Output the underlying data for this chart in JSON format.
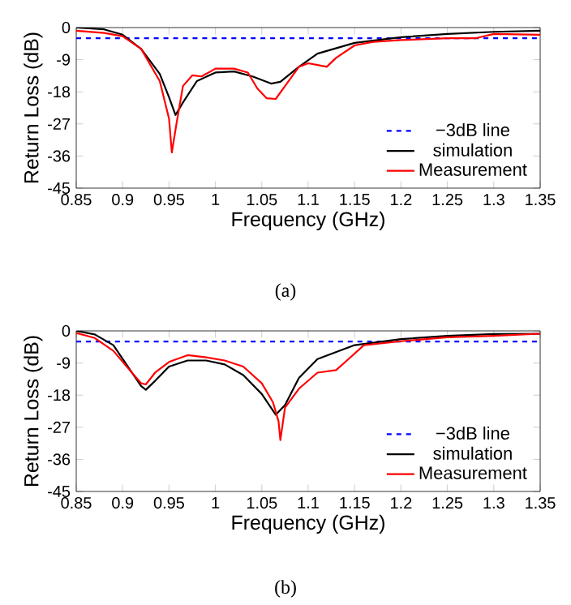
{
  "chart_data": [
    {
      "type": "line",
      "xlabel": "Frequency (GHz)",
      "ylabel": "Return Loss (dB)",
      "annotations": [
        "(a)"
      ],
      "xlim": [
        0.85,
        1.35
      ],
      "ylim": [
        -45,
        0
      ],
      "xticks": [
        0.85,
        0.9,
        0.95,
        1,
        1.05,
        1.1,
        1.15,
        1.2,
        1.25,
        1.3,
        1.35
      ],
      "yticks": [
        -45,
        -36,
        -27,
        -18,
        -9,
        0
      ],
      "legend": "bottom right",
      "grid": false,
      "marker": "none",
      "series": [
        {
          "name": "−3dB line",
          "color": "#0000ff",
          "line_style": "dashed",
          "x": [
            0.85,
            1.35
          ],
          "values": [
            -3,
            -3
          ]
        },
        {
          "name": "simulation",
          "color": "#000000",
          "line_style": "solid",
          "x": [
            0.85,
            0.88,
            0.9,
            0.92,
            0.94,
            0.95,
            0.957,
            0.965,
            0.98,
            1.0,
            1.02,
            1.04,
            1.06,
            1.07,
            1.09,
            1.11,
            1.15,
            1.2,
            1.25,
            1.3,
            1.35
          ],
          "values": [
            0,
            -0.5,
            -2,
            -6,
            -13,
            -19.5,
            -24.5,
            -21,
            -15,
            -12.6,
            -12.3,
            -13.7,
            -15.7,
            -15.2,
            -11,
            -7.3,
            -4.3,
            -2.7,
            -1.8,
            -1.2,
            -0.9
          ]
        },
        {
          "name": "Measurement",
          "color": "#ff0000",
          "line_style": "solid",
          "x": [
            0.85,
            0.88,
            0.9,
            0.92,
            0.94,
            0.95,
            0.953,
            0.958,
            0.965,
            0.975,
            0.985,
            1.0,
            1.02,
            1.035,
            1.045,
            1.055,
            1.065,
            1.075,
            1.09,
            1.1,
            1.11,
            1.12,
            1.13,
            1.15,
            1.17,
            1.2,
            1.25,
            1.28,
            1.3,
            1.35
          ],
          "values": [
            -0.9,
            -1.5,
            -2.4,
            -6,
            -15,
            -25.5,
            -35,
            -27,
            -16.4,
            -13.4,
            -13.7,
            -11.5,
            -11.5,
            -12.6,
            -17,
            -19.8,
            -20,
            -16.4,
            -11,
            -10,
            -10.5,
            -11,
            -8.5,
            -5,
            -4,
            -3.5,
            -3,
            -3,
            -1.8,
            -2
          ]
        }
      ]
    },
    {
      "type": "line",
      "xlabel": "Frequency (GHz)",
      "ylabel": "Return Loss (dB)",
      "annotations": [
        "(b)"
      ],
      "xlim": [
        0.85,
        1.35
      ],
      "ylim": [
        -45,
        0
      ],
      "xticks": [
        0.85,
        0.9,
        0.95,
        1,
        1.05,
        1.1,
        1.15,
        1.2,
        1.25,
        1.3,
        1.35
      ],
      "yticks": [
        -45,
        -36,
        -27,
        -18,
        -9,
        0
      ],
      "legend": "bottom right",
      "grid": false,
      "marker": "none",
      "series": [
        {
          "name": "−3dB line",
          "color": "#0000ff",
          "line_style": "dashed",
          "x": [
            0.85,
            1.35
          ],
          "values": [
            -3,
            -3
          ]
        },
        {
          "name": "simulation",
          "color": "#000000",
          "line_style": "solid",
          "x": [
            0.85,
            0.87,
            0.89,
            0.91,
            0.92,
            0.925,
            0.935,
            0.95,
            0.97,
            0.99,
            1.01,
            1.03,
            1.05,
            1.065,
            1.075,
            1.09,
            1.11,
            1.15,
            1.2,
            1.25,
            1.3,
            1.35
          ],
          "values": [
            0,
            -1,
            -4,
            -11.7,
            -15.5,
            -16.5,
            -14,
            -10,
            -8.3,
            -8.3,
            -9.4,
            -12.4,
            -17.7,
            -23.5,
            -20.8,
            -13.2,
            -7.9,
            -4,
            -2.3,
            -1.4,
            -0.9,
            -0.8
          ]
        },
        {
          "name": "Measurement",
          "color": "#ff0000",
          "line_style": "solid",
          "x": [
            0.85,
            0.87,
            0.89,
            0.91,
            0.92,
            0.925,
            0.935,
            0.95,
            0.97,
            0.99,
            1.01,
            1.03,
            1.05,
            1.062,
            1.068,
            1.07,
            1.075,
            1.09,
            1.11,
            1.13,
            1.14,
            1.16,
            1.2,
            1.25,
            1.3,
            1.35
          ],
          "values": [
            -0.6,
            -2,
            -5.6,
            -11.7,
            -14.7,
            -15,
            -11.7,
            -8.7,
            -6.8,
            -7.4,
            -8.3,
            -10,
            -14.7,
            -20,
            -25.3,
            -30.6,
            -21.5,
            -16.2,
            -11.7,
            -11,
            -8.7,
            -4,
            -2.9,
            -1.8,
            -1.4,
            -0.8
          ]
        }
      ]
    }
  ]
}
